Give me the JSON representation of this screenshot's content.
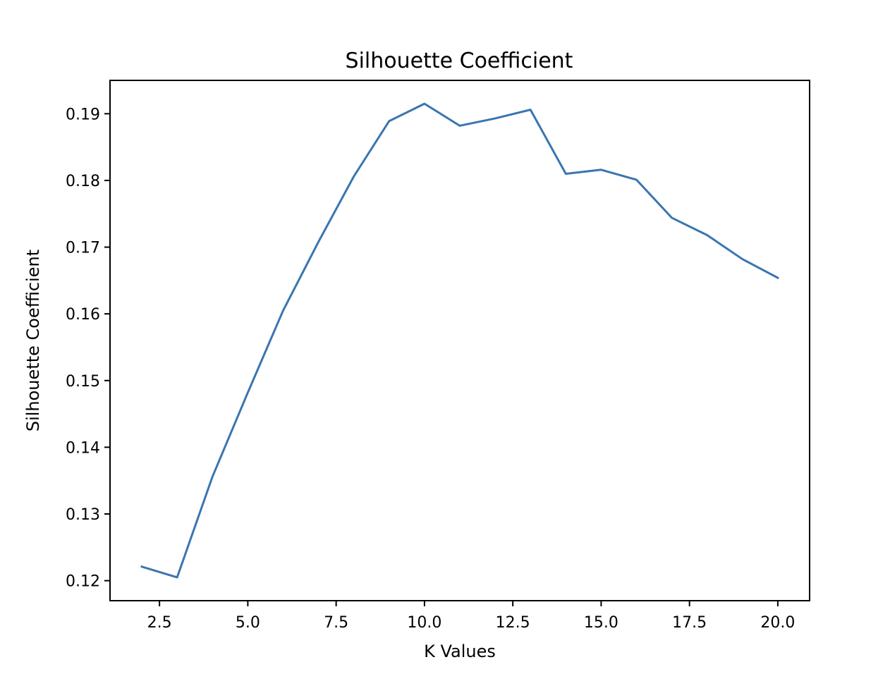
{
  "chart_data": {
    "type": "line",
    "title": "Silhouette Coefficient",
    "xlabel": "K Values",
    "ylabel": "Silhouette Coefficient",
    "xlim": [
      1.1,
      20.9
    ],
    "ylim": [
      0.117,
      0.195
    ],
    "x_ticks": [
      2.5,
      5.0,
      7.5,
      10.0,
      12.5,
      15.0,
      17.5,
      20.0
    ],
    "x_tick_labels": [
      "2.5",
      "5.0",
      "7.5",
      "10.0",
      "12.5",
      "15.0",
      "17.5",
      "20.0"
    ],
    "y_ticks": [
      0.12,
      0.13,
      0.14,
      0.15,
      0.16,
      0.17,
      0.18,
      0.19
    ],
    "y_tick_labels": [
      "0.12",
      "0.13",
      "0.14",
      "0.15",
      "0.16",
      "0.17",
      "0.18",
      "0.19"
    ],
    "grid": false,
    "series": [
      {
        "color": "#3a75b0",
        "x": [
          2,
          3,
          4,
          5,
          6,
          7,
          8,
          9,
          10,
          11,
          12,
          13,
          14,
          15,
          16,
          17,
          18,
          19,
          20
        ],
        "values": [
          0.1221,
          0.1205,
          0.1356,
          0.1482,
          0.1605,
          0.1708,
          0.1806,
          0.1889,
          0.1915,
          0.1882,
          0.1893,
          0.1906,
          0.181,
          0.1816,
          0.1801,
          0.1744,
          0.1718,
          0.1682,
          0.1654
        ]
      }
    ]
  }
}
